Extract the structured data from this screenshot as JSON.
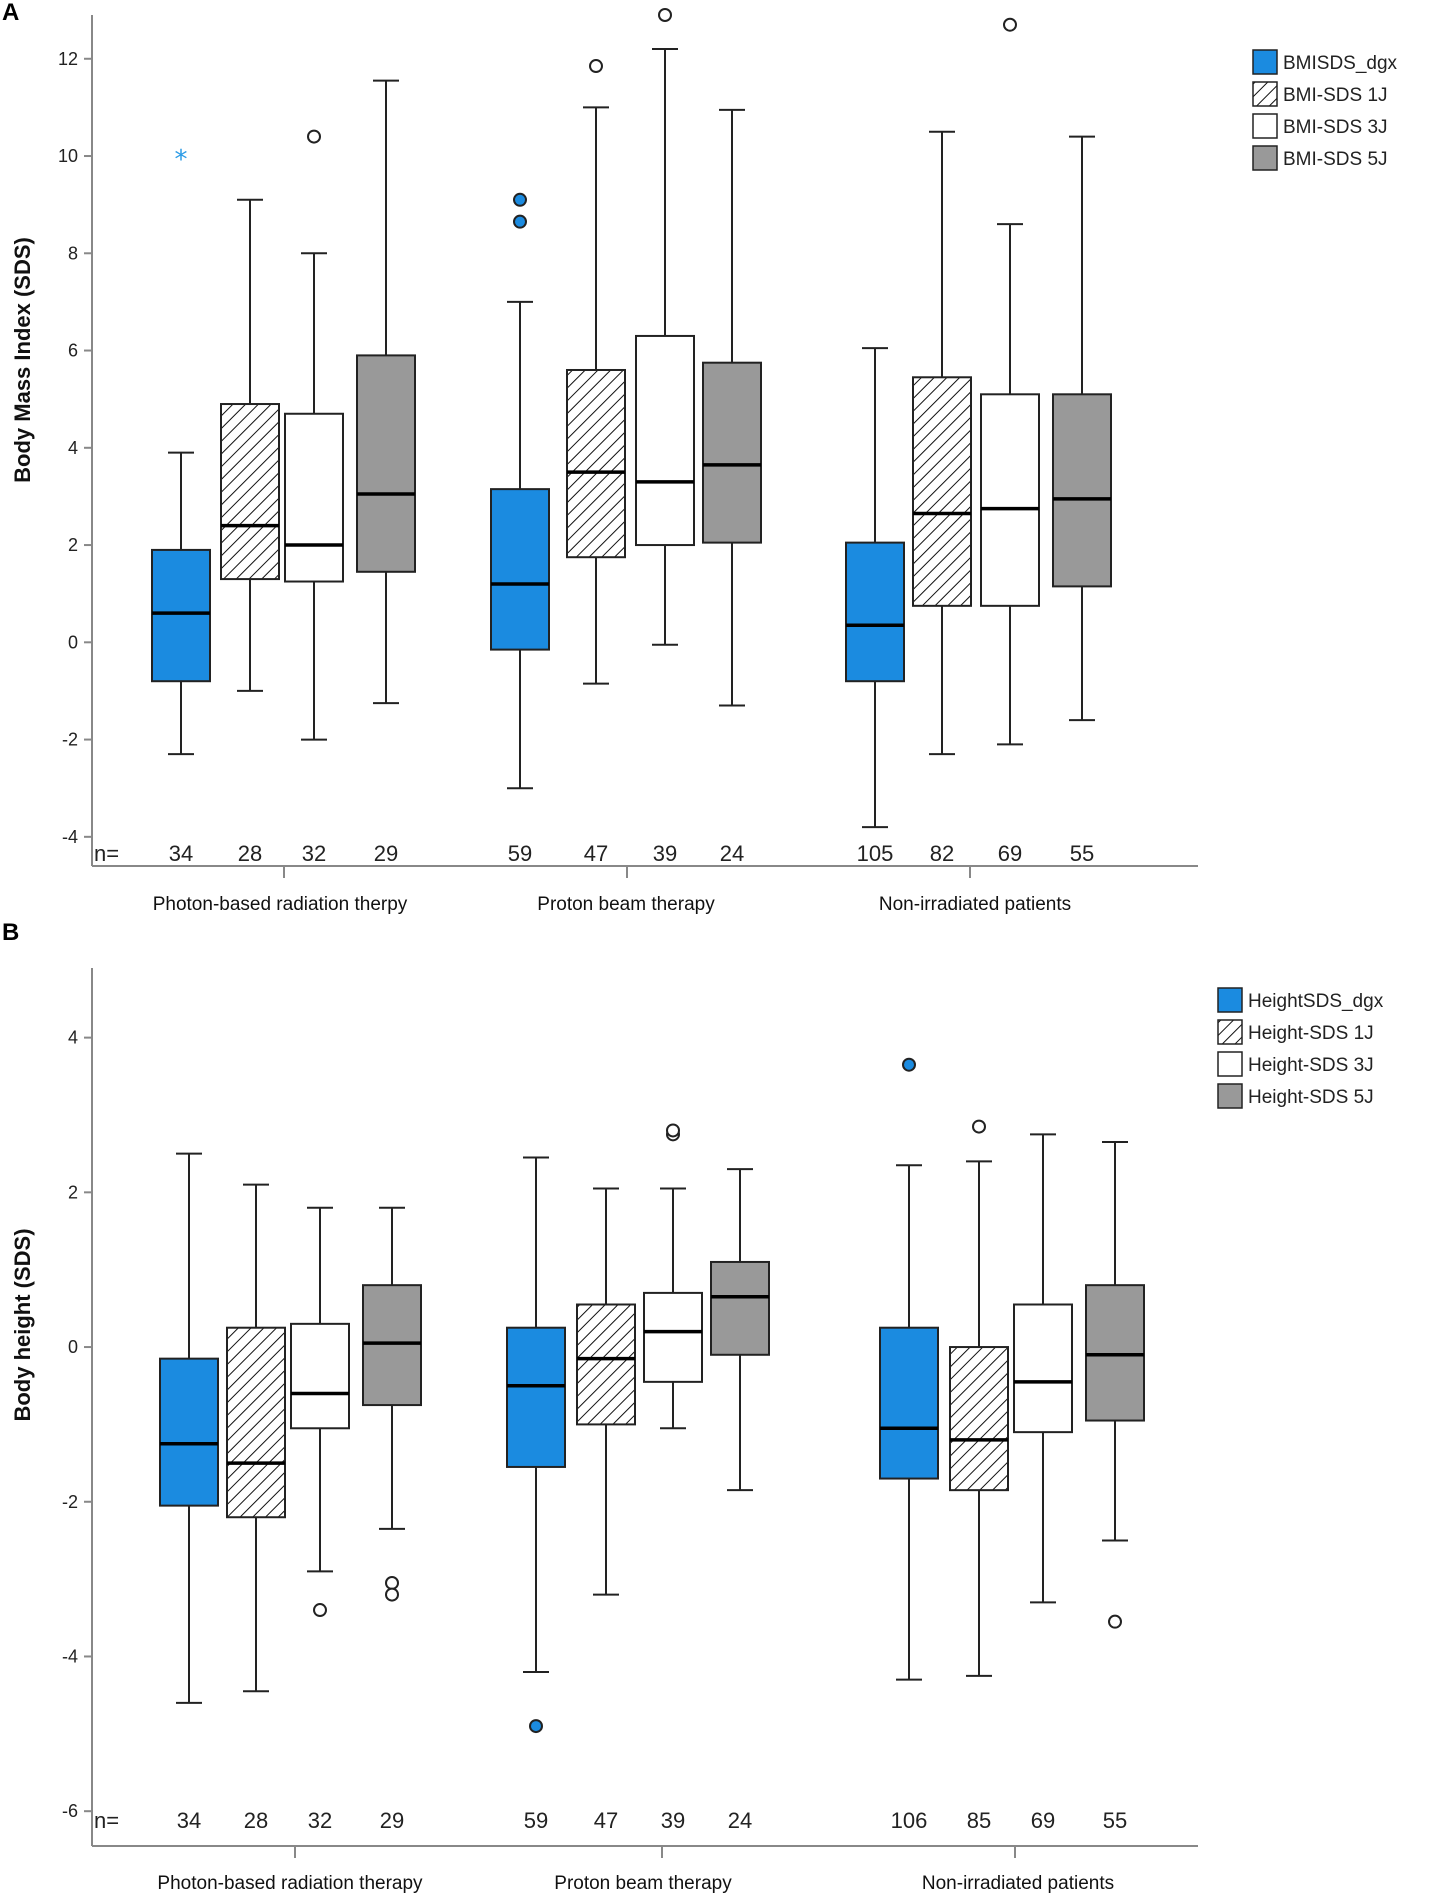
{
  "chart_data": [
    {
      "type": "boxplot",
      "panel": "A",
      "ylabel": "Body Mass Index (SDS)",
      "ylim": [
        -4.6,
        12.9
      ],
      "yticks": [
        -4,
        -2,
        0,
        2,
        4,
        6,
        8,
        10,
        12
      ],
      "n_prefix": "n=",
      "groups": [
        "Photon-based radiation therpy",
        "Proton beam therapy",
        "Non-irradiated patients"
      ],
      "legend": [
        "BMISDS_dgx",
        "BMI-SDS 1J",
        "BMI-SDS 3J",
        "BMI-SDS 5J"
      ],
      "boxes": [
        {
          "group": 0,
          "series": 0,
          "n": "34",
          "min": -2.3,
          "q1": -0.8,
          "median": 0.6,
          "q3": 1.9,
          "max": 3.9,
          "outliers": [],
          "extremes": [
            10.0
          ]
        },
        {
          "group": 0,
          "series": 1,
          "n": "28",
          "min": -1.0,
          "q1": 1.3,
          "median": 2.4,
          "q3": 4.9,
          "max": 9.1,
          "outliers": [],
          "extremes": []
        },
        {
          "group": 0,
          "series": 2,
          "n": "32",
          "min": -2.0,
          "q1": 1.25,
          "median": 2.0,
          "q3": 4.7,
          "max": 8.0,
          "outliers": [
            10.4
          ],
          "extremes": []
        },
        {
          "group": 0,
          "series": 3,
          "n": "29",
          "min": -1.25,
          "q1": 1.45,
          "median": 3.05,
          "q3": 5.9,
          "max": 11.55,
          "outliers": [],
          "extremes": []
        },
        {
          "group": 1,
          "series": 0,
          "n": "59",
          "min": -3.0,
          "q1": -0.15,
          "median": 1.2,
          "q3": 3.15,
          "max": 7.0,
          "outliers": [
            8.65,
            9.1
          ],
          "extremes": []
        },
        {
          "group": 1,
          "series": 1,
          "n": "47",
          "min": -0.85,
          "q1": 1.75,
          "median": 3.5,
          "q3": 5.6,
          "max": 11.0,
          "outliers": [
            11.85
          ],
          "extremes": []
        },
        {
          "group": 1,
          "series": 2,
          "n": "39",
          "min": -0.05,
          "q1": 2.0,
          "median": 3.3,
          "q3": 6.3,
          "max": 12.2,
          "outliers": [
            12.9
          ],
          "extremes": []
        },
        {
          "group": 1,
          "series": 3,
          "n": "24",
          "min": -1.3,
          "q1": 2.05,
          "median": 3.65,
          "q3": 5.75,
          "max": 10.95,
          "outliers": [],
          "extremes": []
        },
        {
          "group": 2,
          "series": 0,
          "n": "105",
          "min": -3.8,
          "q1": -0.8,
          "median": 0.35,
          "q3": 2.05,
          "max": 6.05,
          "outliers": [],
          "extremes": []
        },
        {
          "group": 2,
          "series": 1,
          "n": "82",
          "min": -2.3,
          "q1": 0.75,
          "median": 2.65,
          "q3": 5.45,
          "max": 10.5,
          "outliers": [],
          "extremes": []
        },
        {
          "group": 2,
          "series": 2,
          "n": "69",
          "min": -2.1,
          "q1": 0.75,
          "median": 2.75,
          "q3": 5.1,
          "max": 8.6,
          "outliers": [
            12.7
          ],
          "extremes": []
        },
        {
          "group": 2,
          "series": 3,
          "n": "55",
          "min": -1.6,
          "q1": 1.15,
          "median": 2.95,
          "q3": 5.1,
          "max": 10.4,
          "outliers": [],
          "extremes": []
        }
      ]
    },
    {
      "type": "boxplot",
      "panel": "B",
      "ylabel": "Body height (SDS)",
      "ylim": [
        -6.45,
        4.9
      ],
      "yticks": [
        -6,
        -4,
        -2,
        0,
        2,
        4
      ],
      "n_prefix": "n=",
      "groups": [
        "Photon-based radiation therapy",
        "Proton beam therapy",
        "Non-irradiated patients"
      ],
      "legend": [
        "HeightSDS_dgx",
        "Height-SDS 1J",
        "Height-SDS 3J",
        "Height-SDS 5J"
      ],
      "boxes": [
        {
          "group": 0,
          "series": 0,
          "n": "34",
          "min": -4.6,
          "q1": -2.05,
          "median": -1.25,
          "q3": -0.15,
          "max": 2.5,
          "outliers": [],
          "extremes": []
        },
        {
          "group": 0,
          "series": 1,
          "n": "28",
          "min": -4.45,
          "q1": -2.2,
          "median": -1.5,
          "q3": 0.25,
          "max": 2.1,
          "outliers": [],
          "extremes": []
        },
        {
          "group": 0,
          "series": 2,
          "n": "32",
          "min": -2.9,
          "q1": -1.05,
          "median": -0.6,
          "q3": 0.3,
          "max": 1.8,
          "outliers": [
            -3.4
          ],
          "extremes": []
        },
        {
          "group": 0,
          "series": 3,
          "n": "29",
          "min": -2.35,
          "q1": -0.75,
          "median": 0.05,
          "q3": 0.8,
          "max": 1.8,
          "outliers": [
            -3.05,
            -3.2
          ],
          "extremes": []
        },
        {
          "group": 1,
          "series": 0,
          "n": "59",
          "min": -4.2,
          "q1": -1.55,
          "median": -0.5,
          "q3": 0.25,
          "max": 2.45,
          "outliers": [
            -4.9
          ],
          "extremes": []
        },
        {
          "group": 1,
          "series": 1,
          "n": "47",
          "min": -3.2,
          "q1": -1.0,
          "median": -0.15,
          "q3": 0.55,
          "max": 2.05,
          "outliers": [],
          "extremes": []
        },
        {
          "group": 1,
          "series": 2,
          "n": "39",
          "min": -1.05,
          "q1": -0.45,
          "median": 0.2,
          "q3": 0.7,
          "max": 2.05,
          "outliers": [
            2.75,
            2.8
          ],
          "extremes": []
        },
        {
          "group": 1,
          "series": 3,
          "n": "24",
          "min": -1.85,
          "q1": -0.1,
          "median": 0.65,
          "q3": 1.1,
          "max": 2.3,
          "outliers": [],
          "extremes": []
        },
        {
          "group": 2,
          "series": 0,
          "n": "106",
          "min": -4.3,
          "q1": -1.7,
          "median": -1.05,
          "q3": 0.25,
          "max": 2.35,
          "outliers": [
            3.65
          ],
          "extremes": []
        },
        {
          "group": 2,
          "series": 1,
          "n": "85",
          "min": -4.25,
          "q1": -1.85,
          "median": -1.2,
          "q3": 0.0,
          "max": 2.4,
          "outliers": [
            2.85
          ],
          "extremes": []
        },
        {
          "group": 2,
          "series": 2,
          "n": "69",
          "min": -3.3,
          "q1": -1.1,
          "median": -0.45,
          "q3": 0.55,
          "max": 2.75,
          "outliers": [],
          "extremes": []
        },
        {
          "group": 2,
          "series": 3,
          "n": "55",
          "min": -2.5,
          "q1": -0.95,
          "median": -0.1,
          "q3": 0.8,
          "max": 2.65,
          "outliers": [
            -3.55
          ],
          "extremes": []
        }
      ]
    }
  ],
  "series_styles": [
    {
      "fill": "#1b8be0",
      "pattern": "solid"
    },
    {
      "fill": "#ffffff",
      "pattern": "hatch"
    },
    {
      "fill": "#ffffff",
      "pattern": "solid"
    },
    {
      "fill": "#999999",
      "pattern": "solid"
    }
  ],
  "colors": {
    "extreme_star": "#2b9be6",
    "axis": "#888888",
    "median": "#000000",
    "stroke": "#222222"
  }
}
